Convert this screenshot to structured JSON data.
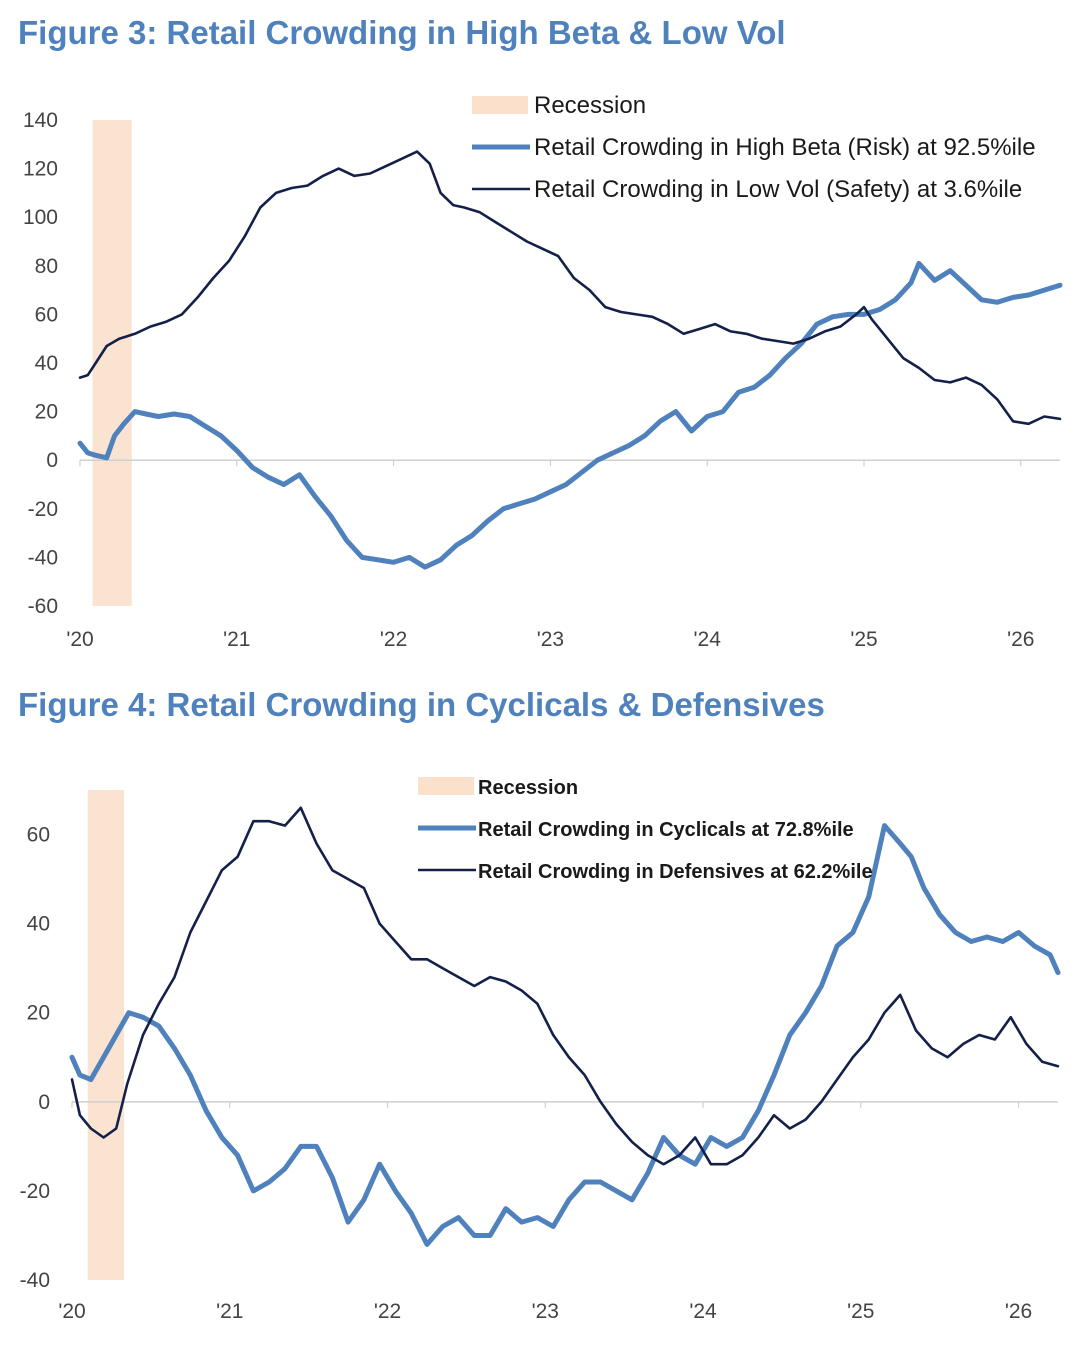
{
  "colors": {
    "title": "#4f81bd",
    "light_series": "#4f81bd",
    "dark_series": "#14204a",
    "recession": "#fbe0cc",
    "axis": "#cfcfcf"
  },
  "chart_data": [
    {
      "type": "line",
      "title": "Figure 3: Retail Crowding in High Beta & Low Vol",
      "xlabel": "",
      "ylabel": "",
      "ylim": [
        -60,
        140
      ],
      "yticks": [
        "140",
        "120",
        "100",
        "80",
        "60",
        "40",
        "20",
        "0",
        "-20",
        "-40",
        "-60"
      ],
      "ytick_values": [
        140,
        120,
        100,
        80,
        60,
        40,
        20,
        0,
        -20,
        -40,
        -60
      ],
      "x_ticks": [
        "'20",
        "'21",
        "'22",
        "'23",
        "'24",
        "'25",
        "'26"
      ],
      "x_tick_values": [
        2020,
        2021,
        2022,
        2023,
        2024,
        2025,
        2026
      ],
      "xlim": [
        2020,
        2026.25
      ],
      "legend_position": "top-right",
      "recession": {
        "label": "Recession",
        "start": 2020.08,
        "end": 2020.33
      },
      "series": [
        {
          "name": "Retail Crowding in High Beta (Risk) at 92.5%ile",
          "style": "thick-light",
          "x": [
            2020.0,
            2020.05,
            2020.1,
            2020.17,
            2020.22,
            2020.28,
            2020.35,
            2020.42,
            2020.5,
            2020.6,
            2020.7,
            2020.8,
            2020.9,
            2021.0,
            2021.1,
            2021.2,
            2021.3,
            2021.4,
            2021.5,
            2021.6,
            2021.7,
            2021.8,
            2021.9,
            2022.0,
            2022.1,
            2022.2,
            2022.3,
            2022.4,
            2022.5,
            2022.6,
            2022.7,
            2022.8,
            2022.9,
            2023.0,
            2023.1,
            2023.2,
            2023.3,
            2023.4,
            2023.5,
            2023.6,
            2023.7,
            2023.8,
            2023.9,
            2024.0,
            2024.1,
            2024.2,
            2024.3,
            2024.4,
            2024.5,
            2024.6,
            2024.7,
            2024.8,
            2024.9,
            2025.0,
            2025.1,
            2025.2,
            2025.3,
            2025.35,
            2025.45,
            2025.55,
            2025.65,
            2025.75,
            2025.85,
            2025.95,
            2026.05,
            2026.15,
            2026.25
          ],
          "values": [
            7,
            3,
            2,
            1,
            10,
            15,
            20,
            19,
            18,
            19,
            18,
            14,
            10,
            4,
            -3,
            -7,
            -10,
            -6,
            -15,
            -23,
            -33,
            -40,
            -41,
            -42,
            -40,
            -44,
            -41,
            -35,
            -31,
            -25,
            -20,
            -18,
            -16,
            -13,
            -10,
            -5,
            0,
            3,
            6,
            10,
            16,
            20,
            12,
            18,
            20,
            28,
            30,
            35,
            42,
            48,
            56,
            59,
            60,
            60,
            62,
            66,
            73,
            81,
            74,
            78,
            72,
            66,
            65,
            67,
            68,
            70,
            72
          ]
        },
        {
          "name": "Retail Crowding in Low Vol (Safety) at 3.6%ile",
          "style": "thin-dark",
          "x": [
            2020.0,
            2020.05,
            2020.1,
            2020.17,
            2020.25,
            2020.35,
            2020.45,
            2020.55,
            2020.65,
            2020.75,
            2020.85,
            2020.95,
            2021.05,
            2021.15,
            2021.25,
            2021.35,
            2021.45,
            2021.55,
            2021.65,
            2021.75,
            2021.85,
            2021.95,
            2022.05,
            2022.15,
            2022.23,
            2022.3,
            2022.38,
            2022.45,
            2022.55,
            2022.65,
            2022.75,
            2022.85,
            2022.95,
            2023.05,
            2023.15,
            2023.25,
            2023.35,
            2023.45,
            2023.55,
            2023.65,
            2023.75,
            2023.85,
            2023.95,
            2024.05,
            2024.15,
            2024.25,
            2024.35,
            2024.45,
            2024.55,
            2024.65,
            2024.75,
            2024.85,
            2024.95,
            2025.0,
            2025.05,
            2025.15,
            2025.25,
            2025.35,
            2025.45,
            2025.55,
            2025.65,
            2025.75,
            2025.85,
            2025.95,
            2026.05,
            2026.15,
            2026.25
          ],
          "values": [
            34,
            35,
            40,
            47,
            50,
            52,
            55,
            57,
            60,
            67,
            75,
            82,
            92,
            104,
            110,
            112,
            113,
            117,
            120,
            117,
            118,
            121,
            124,
            127,
            122,
            110,
            105,
            104,
            102,
            98,
            94,
            90,
            87,
            84,
            75,
            70,
            63,
            61,
            60,
            59,
            56,
            52,
            54,
            56,
            53,
            52,
            50,
            49,
            48,
            50,
            53,
            55,
            60,
            63,
            58,
            50,
            42,
            38,
            33,
            32,
            34,
            31,
            25,
            16,
            15,
            18,
            17
          ]
        }
      ]
    },
    {
      "type": "line",
      "title": "Figure 4: Retail Crowding in Cyclicals & Defensives",
      "xlabel": "",
      "ylabel": "",
      "ylim": [
        -40,
        70
      ],
      "yticks": [
        "60",
        "40",
        "20",
        "0",
        "-20",
        "-40"
      ],
      "ytick_values": [
        60,
        40,
        20,
        0,
        -20,
        -40
      ],
      "x_ticks": [
        "'20",
        "'21",
        "'22",
        "'23",
        "'24",
        "'25",
        "'26"
      ],
      "x_tick_values": [
        2020,
        2021,
        2022,
        2023,
        2024,
        2025,
        2026
      ],
      "xlim": [
        2020,
        2026.25
      ],
      "legend_position": "top-right",
      "recession": {
        "label": "Recession",
        "start": 2020.1,
        "end": 2020.33
      },
      "series": [
        {
          "name": "Retail Crowding in Cyclicals at 72.8%ile",
          "style": "thick-light",
          "x": [
            2020.0,
            2020.05,
            2020.12,
            2020.2,
            2020.28,
            2020.36,
            2020.45,
            2020.55,
            2020.65,
            2020.75,
            2020.85,
            2020.95,
            2021.05,
            2021.15,
            2021.25,
            2021.35,
            2021.45,
            2021.55,
            2021.65,
            2021.75,
            2021.85,
            2021.95,
            2022.05,
            2022.15,
            2022.25,
            2022.35,
            2022.45,
            2022.55,
            2022.65,
            2022.75,
            2022.85,
            2022.95,
            2023.05,
            2023.15,
            2023.25,
            2023.35,
            2023.45,
            2023.55,
            2023.65,
            2023.75,
            2023.85,
            2023.95,
            2024.05,
            2024.15,
            2024.25,
            2024.35,
            2024.45,
            2024.55,
            2024.65,
            2024.75,
            2024.85,
            2024.95,
            2025.05,
            2025.15,
            2025.25,
            2025.32,
            2025.4,
            2025.5,
            2025.6,
            2025.7,
            2025.8,
            2025.9,
            2026.0,
            2026.1,
            2026.2,
            2026.25
          ],
          "values": [
            10,
            6,
            5,
            10,
            15,
            20,
            19,
            17,
            12,
            6,
            -2,
            -8,
            -12,
            -20,
            -18,
            -15,
            -10,
            -10,
            -17,
            -27,
            -22,
            -14,
            -20,
            -25,
            -32,
            -28,
            -26,
            -30,
            -30,
            -24,
            -27,
            -26,
            -28,
            -22,
            -18,
            -18,
            -20,
            -22,
            -16,
            -8,
            -12,
            -14,
            -8,
            -10,
            -8,
            -2,
            6,
            15,
            20,
            26,
            35,
            38,
            46,
            62,
            58,
            55,
            48,
            42,
            38,
            36,
            37,
            36,
            38,
            35,
            33,
            29
          ]
        },
        {
          "name": "Retail Crowding in Defensives at 62.2%ile",
          "style": "thin-dark",
          "x": [
            2020.0,
            2020.05,
            2020.12,
            2020.2,
            2020.28,
            2020.35,
            2020.45,
            2020.55,
            2020.65,
            2020.75,
            2020.85,
            2020.95,
            2021.05,
            2021.15,
            2021.25,
            2021.35,
            2021.45,
            2021.55,
            2021.65,
            2021.75,
            2021.85,
            2021.95,
            2022.05,
            2022.15,
            2022.25,
            2022.35,
            2022.45,
            2022.55,
            2022.65,
            2022.75,
            2022.85,
            2022.95,
            2023.05,
            2023.15,
            2023.25,
            2023.35,
            2023.45,
            2023.55,
            2023.65,
            2023.75,
            2023.85,
            2023.95,
            2024.05,
            2024.15,
            2024.25,
            2024.35,
            2024.45,
            2024.55,
            2024.65,
            2024.75,
            2024.85,
            2024.95,
            2025.05,
            2025.15,
            2025.25,
            2025.35,
            2025.45,
            2025.55,
            2025.65,
            2025.75,
            2025.85,
            2025.95,
            2026.05,
            2026.15,
            2026.25
          ],
          "values": [
            5,
            -3,
            -6,
            -8,
            -6,
            4,
            15,
            22,
            28,
            38,
            45,
            52,
            55,
            63,
            63,
            62,
            66,
            58,
            52,
            50,
            48,
            40,
            36,
            32,
            32,
            30,
            28,
            26,
            28,
            27,
            25,
            22,
            15,
            10,
            6,
            0,
            -5,
            -9,
            -12,
            -14,
            -12,
            -8,
            -14,
            -14,
            -12,
            -8,
            -3,
            -6,
            -4,
            0,
            5,
            10,
            14,
            20,
            24,
            16,
            12,
            10,
            13,
            15,
            14,
            19,
            13,
            9,
            8
          ]
        }
      ]
    }
  ]
}
